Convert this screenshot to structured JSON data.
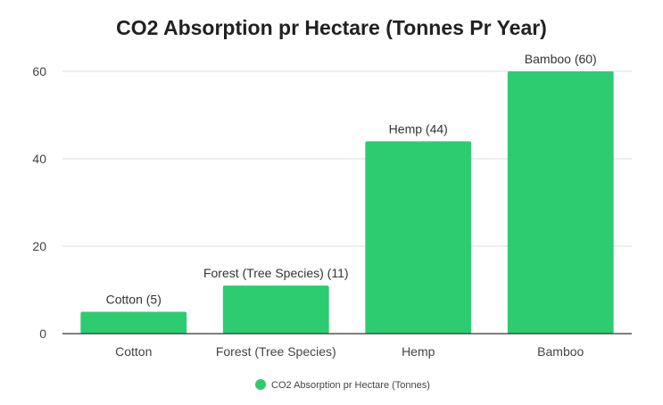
{
  "chart_data": {
    "type": "bar",
    "title": "CO2 Absorption pr Hectare (Tonnes Pr Year)",
    "categories": [
      "Cotton",
      "Forest (Tree Species)",
      "Hemp",
      "Bamboo"
    ],
    "series": [
      {
        "name": "CO2 Absorption pr Hectare (Tonnes)",
        "values": [
          5,
          11,
          44,
          60
        ],
        "data_labels": [
          "Cotton (5)",
          "Forest (Tree Species) (11)",
          "Hemp (44)",
          "Bamboo (60)"
        ],
        "color": "#2ecc71"
      }
    ],
    "ylim": [
      0,
      60
    ],
    "yticks": [
      "0",
      "20",
      "40",
      "60"
    ],
    "xlabel": "",
    "ylabel": "",
    "grid": true,
    "legend": "bottom"
  }
}
